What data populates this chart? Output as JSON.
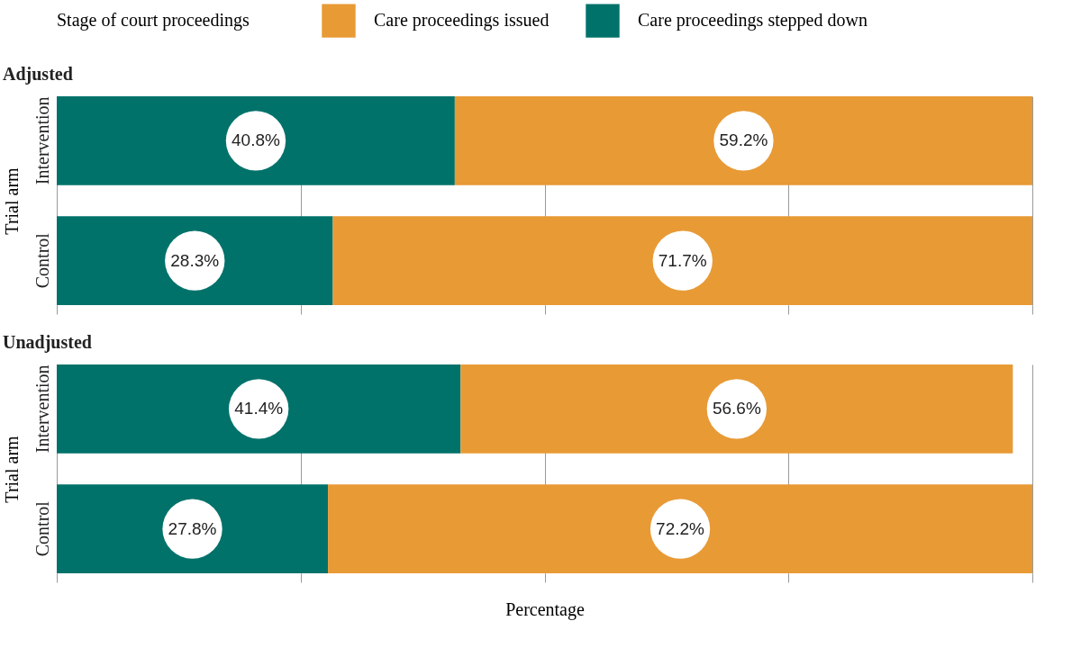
{
  "chart_data": [
    {
      "type": "bar",
      "title": "Adjusted",
      "ylabel": "Trial arm",
      "legend_title": "Stage of court proceedings",
      "legend": "top",
      "orientation": "horizontal",
      "stacked": true,
      "grid": "x",
      "tick_labels": "y",
      "categories": [
        "Intervention",
        "Control"
      ],
      "series": [
        {
          "name": "Care proceedings stepped down",
          "color": "#00726a",
          "values": [
            40.8,
            28.3
          ],
          "value_labels": [
            "40.8%",
            "28.3%"
          ]
        },
        {
          "name": "Care proceedings issued",
          "color": "#e89a35",
          "values": [
            59.2,
            71.7
          ],
          "value_labels": [
            "59.2%",
            "71.7%"
          ]
        }
      ]
    },
    {
      "type": "bar",
      "title": "Unadjusted",
      "ylabel": "Trial arm",
      "xlabel": "Percentage",
      "orientation": "horizontal",
      "stacked": true,
      "grid": "x",
      "tick_labels": "y",
      "categories": [
        "Intervention",
        "Control"
      ],
      "series": [
        {
          "name": "Care proceedings stepped down",
          "color": "#00726a",
          "values": [
            41.4,
            27.8
          ],
          "value_labels": [
            "41.4%",
            "27.8%"
          ]
        },
        {
          "name": "Care proceedings issued",
          "color": "#e89a35",
          "values": [
            56.6,
            72.2
          ],
          "value_labels": [
            "56.6%",
            "72.2%"
          ]
        }
      ]
    }
  ]
}
